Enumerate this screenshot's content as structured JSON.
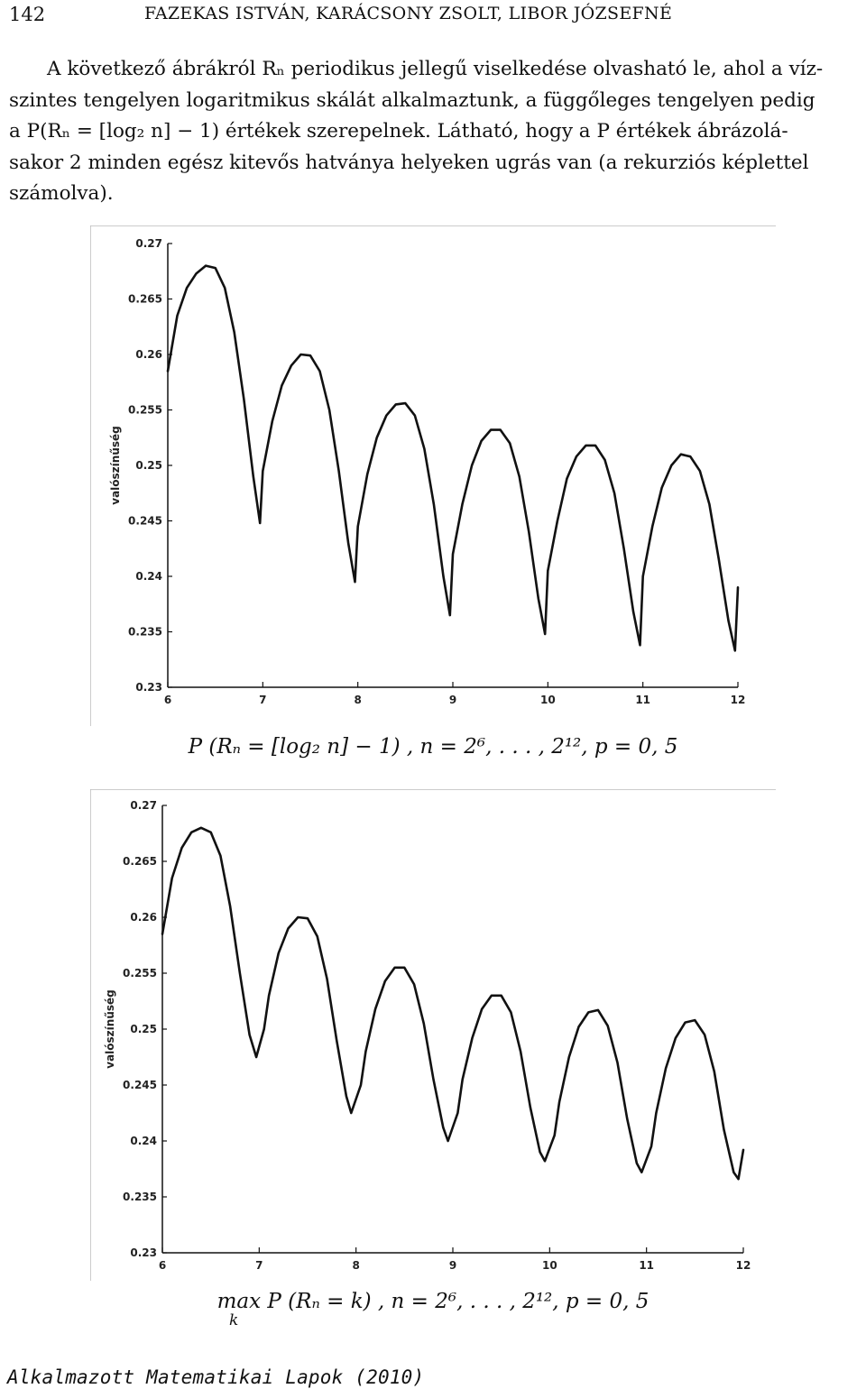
{
  "header": {
    "page_number": "142",
    "running_title": "FAZEKAS ISTVÁN, KARÁCSONY ZSOLT, LIBOR JÓZSEFNÉ"
  },
  "body": {
    "lines": [
      "A következő ábrákról Rₙ periodikus jellegű viselkedése olvasható le, ahol a víz-",
      "szintes tengelyen logaritmikus skálát alkalmaztunk, a függőleges tengelyen pedig",
      "a P(Rₙ = [log₂ n] − 1) értékek szerepelnek. Látható, hogy a P értékek ábrázolá-",
      "sakor 2 minden egész kitevős hatványa helyeken ugrás van (a rekurziós képlettel",
      "számolva)."
    ]
  },
  "figures": [
    {
      "caption": "P (Rₙ = [log₂ n] − 1) ,  n = 2⁶, . . . , 2¹²,  p = 0, 5",
      "chart_data": {
        "type": "line",
        "xlabel": "",
        "ylabel": "valószínűség",
        "xlim": [
          6,
          12
        ],
        "ylim": [
          0.23,
          0.27
        ],
        "xticks": [
          "6",
          "7",
          "8",
          "9",
          "10",
          "11",
          "12"
        ],
        "yticks": [
          "0.23",
          "0.235",
          "0.24",
          "0.245",
          "0.25",
          "0.255",
          "0.26",
          "0.265",
          "0.27"
        ],
        "series": [
          {
            "values": [
              [
                6.0,
                0.2585
              ],
              [
                6.1,
                0.2635
              ],
              [
                6.2,
                0.266
              ],
              [
                6.3,
                0.2673
              ],
              [
                6.4,
                0.268
              ],
              [
                6.5,
                0.2678
              ],
              [
                6.6,
                0.266
              ],
              [
                6.7,
                0.262
              ],
              [
                6.8,
                0.256
              ],
              [
                6.9,
                0.249
              ],
              [
                6.97,
                0.2448
              ],
              [
                7.0,
                0.2495
              ],
              [
                7.1,
                0.254
              ],
              [
                7.2,
                0.2572
              ],
              [
                7.3,
                0.259
              ],
              [
                7.4,
                0.26
              ],
              [
                7.5,
                0.2599
              ],
              [
                7.6,
                0.2585
              ],
              [
                7.7,
                0.255
              ],
              [
                7.8,
                0.2495
              ],
              [
                7.9,
                0.243
              ],
              [
                7.97,
                0.2395
              ],
              [
                8.0,
                0.2445
              ],
              [
                8.1,
                0.2492
              ],
              [
                8.2,
                0.2525
              ],
              [
                8.3,
                0.2545
              ],
              [
                8.4,
                0.2555
              ],
              [
                8.5,
                0.2556
              ],
              [
                8.6,
                0.2545
              ],
              [
                8.7,
                0.2515
              ],
              [
                8.8,
                0.2465
              ],
              [
                8.9,
                0.24
              ],
              [
                8.97,
                0.2365
              ],
              [
                9.0,
                0.242
              ],
              [
                9.1,
                0.2465
              ],
              [
                9.2,
                0.25
              ],
              [
                9.3,
                0.2522
              ],
              [
                9.4,
                0.2532
              ],
              [
                9.5,
                0.2532
              ],
              [
                9.6,
                0.252
              ],
              [
                9.7,
                0.249
              ],
              [
                9.8,
                0.244
              ],
              [
                9.9,
                0.238
              ],
              [
                9.97,
                0.2348
              ],
              [
                10.0,
                0.2405
              ],
              [
                10.1,
                0.245
              ],
              [
                10.2,
                0.2488
              ],
              [
                10.3,
                0.2508
              ],
              [
                10.4,
                0.2518
              ],
              [
                10.5,
                0.2518
              ],
              [
                10.6,
                0.2505
              ],
              [
                10.7,
                0.2475
              ],
              [
                10.8,
                0.2425
              ],
              [
                10.9,
                0.2368
              ],
              [
                10.97,
                0.2338
              ],
              [
                11.0,
                0.24
              ],
              [
                11.1,
                0.2445
              ],
              [
                11.2,
                0.248
              ],
              [
                11.3,
                0.25
              ],
              [
                11.4,
                0.251
              ],
              [
                11.5,
                0.2508
              ],
              [
                11.6,
                0.2495
              ],
              [
                11.7,
                0.2465
              ],
              [
                11.8,
                0.2415
              ],
              [
                11.9,
                0.236
              ],
              [
                11.97,
                0.2333
              ],
              [
                12.0,
                0.239
              ]
            ]
          }
        ]
      }
    },
    {
      "caption": "max P (Rₙ = k) ,  n = 2⁶, . . . , 2¹²,  p = 0, 5",
      "caption_sub": "k",
      "chart_data": {
        "type": "line",
        "xlabel": "",
        "ylabel": "valószínűség",
        "xlim": [
          6,
          12
        ],
        "ylim": [
          0.23,
          0.27
        ],
        "xticks": [
          "6",
          "7",
          "8",
          "9",
          "10",
          "11",
          "12"
        ],
        "yticks": [
          "0.23",
          "0.235",
          "0.24",
          "0.245",
          "0.25",
          "0.255",
          "0.26",
          "0.265",
          "0.27"
        ],
        "series": [
          {
            "values": [
              [
                6.0,
                0.2585
              ],
              [
                6.1,
                0.2635
              ],
              [
                6.2,
                0.2662
              ],
              [
                6.3,
                0.2676
              ],
              [
                6.4,
                0.268
              ],
              [
                6.5,
                0.2676
              ],
              [
                6.6,
                0.2655
              ],
              [
                6.7,
                0.261
              ],
              [
                6.8,
                0.255
              ],
              [
                6.9,
                0.2495
              ],
              [
                6.97,
                0.2475
              ],
              [
                7.05,
                0.25
              ],
              [
                7.1,
                0.253
              ],
              [
                7.2,
                0.2568
              ],
              [
                7.3,
                0.259
              ],
              [
                7.4,
                0.26
              ],
              [
                7.5,
                0.2599
              ],
              [
                7.6,
                0.2583
              ],
              [
                7.7,
                0.2545
              ],
              [
                7.8,
                0.249
              ],
              [
                7.9,
                0.244
              ],
              [
                7.95,
                0.2425
              ],
              [
                8.05,
                0.245
              ],
              [
                8.1,
                0.248
              ],
              [
                8.2,
                0.2518
              ],
              [
                8.3,
                0.2543
              ],
              [
                8.4,
                0.2555
              ],
              [
                8.5,
                0.2555
              ],
              [
                8.6,
                0.254
              ],
              [
                8.7,
                0.2505
              ],
              [
                8.8,
                0.2455
              ],
              [
                8.9,
                0.2412
              ],
              [
                8.95,
                0.24
              ],
              [
                9.05,
                0.2425
              ],
              [
                9.1,
                0.2455
              ],
              [
                9.2,
                0.2492
              ],
              [
                9.3,
                0.2518
              ],
              [
                9.4,
                0.253
              ],
              [
                9.5,
                0.253
              ],
              [
                9.6,
                0.2515
              ],
              [
                9.7,
                0.248
              ],
              [
                9.8,
                0.243
              ],
              [
                9.9,
                0.239
              ],
              [
                9.95,
                0.2382
              ],
              [
                10.05,
                0.2405
              ],
              [
                10.1,
                0.2435
              ],
              [
                10.2,
                0.2475
              ],
              [
                10.3,
                0.2502
              ],
              [
                10.4,
                0.2515
              ],
              [
                10.5,
                0.2517
              ],
              [
                10.6,
                0.2503
              ],
              [
                10.7,
                0.247
              ],
              [
                10.8,
                0.242
              ],
              [
                10.9,
                0.238
              ],
              [
                10.95,
                0.2372
              ],
              [
                11.05,
                0.2395
              ],
              [
                11.1,
                0.2425
              ],
              [
                11.2,
                0.2465
              ],
              [
                11.3,
                0.2492
              ],
              [
                11.4,
                0.2506
              ],
              [
                11.5,
                0.2508
              ],
              [
                11.6,
                0.2495
              ],
              [
                11.7,
                0.2462
              ],
              [
                11.8,
                0.241
              ],
              [
                11.9,
                0.2372
              ],
              [
                11.95,
                0.2366
              ],
              [
                12.0,
                0.2392
              ]
            ]
          }
        ]
      }
    }
  ],
  "footer": {
    "journal": "Alkalmazott Matematikai Lapok (2010)"
  }
}
